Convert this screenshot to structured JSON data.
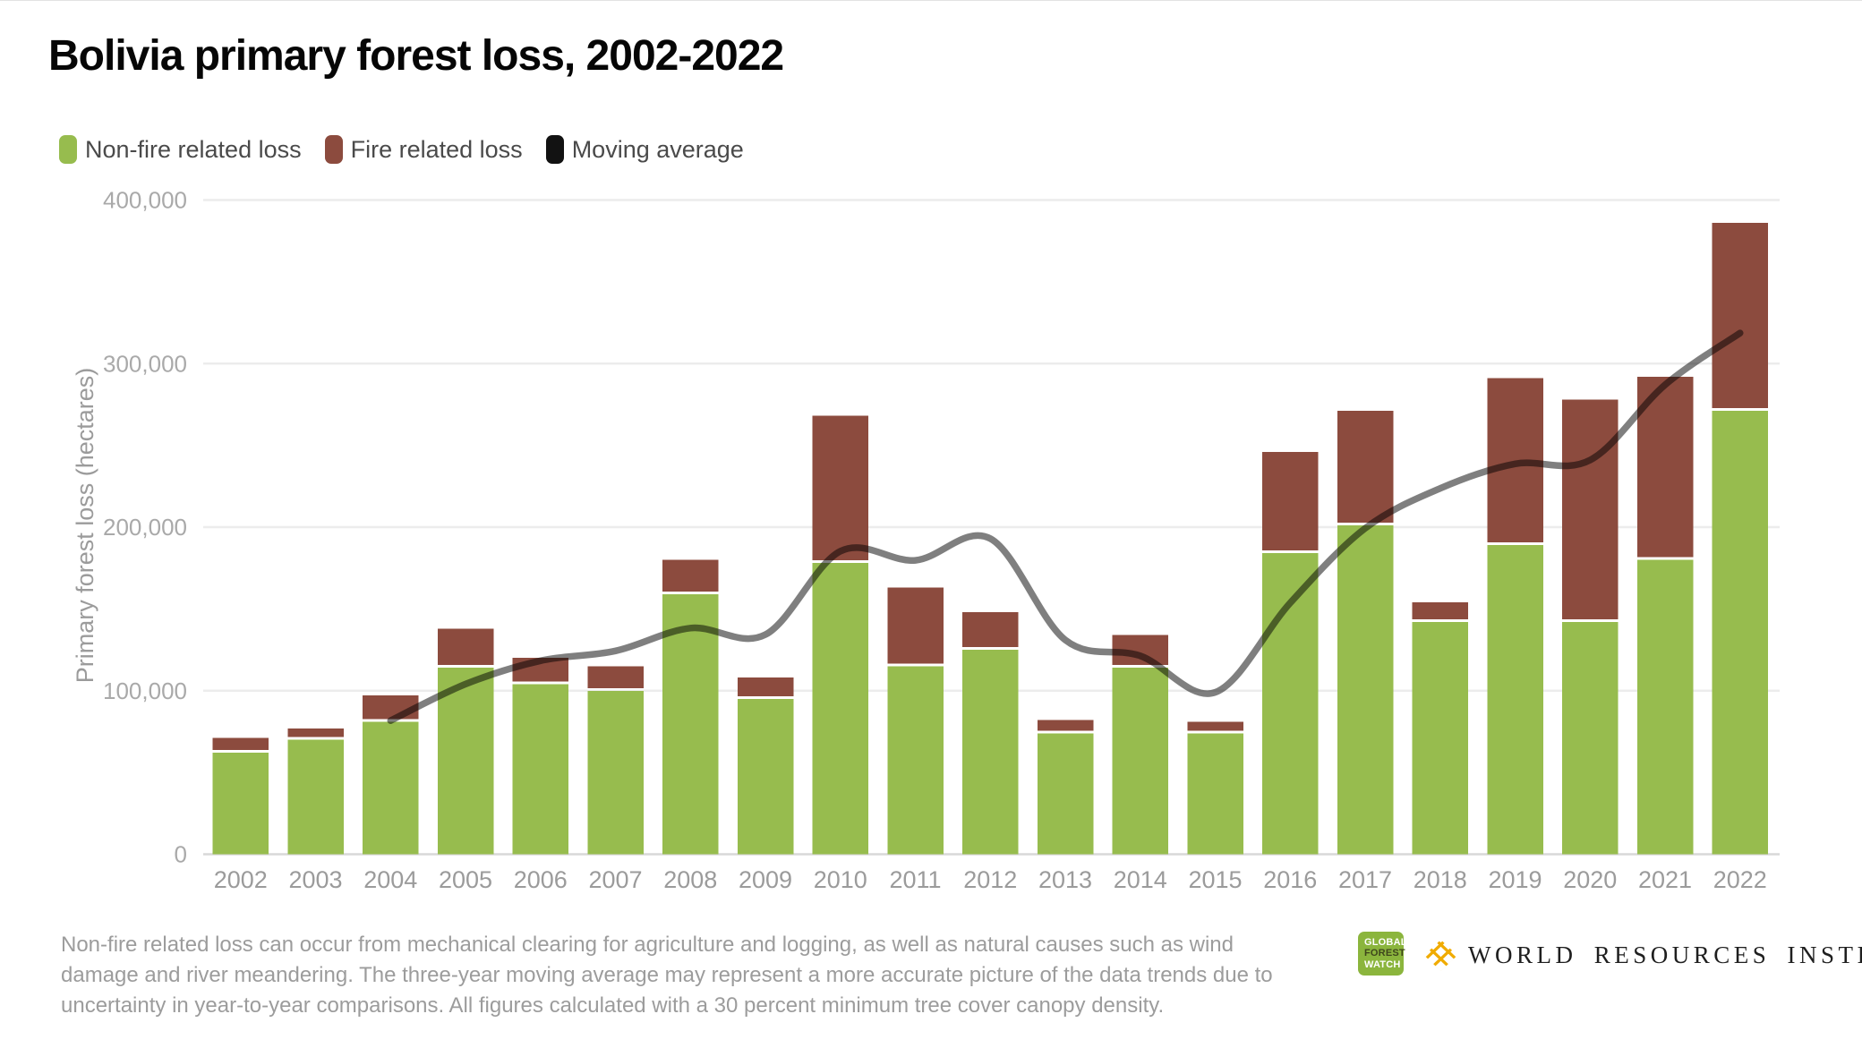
{
  "header": {
    "title": "Bolivia primary forest loss, 2002-2022"
  },
  "legend": [
    {
      "label": "Non-fire related loss",
      "color": "#97BC4E"
    },
    {
      "label": "Fire related loss",
      "color": "#8C4B3E"
    },
    {
      "label": "Moving average",
      "color": "#121212"
    }
  ],
  "chart_data": {
    "type": "bar",
    "stacked": true,
    "title": "Bolivia primary forest loss, 2002-2022",
    "xlabel": "",
    "ylabel": "Primary forest loss (hectares)",
    "categories": [
      "2002",
      "2003",
      "2004",
      "2005",
      "2006",
      "2007",
      "2008",
      "2009",
      "2010",
      "2011",
      "2012",
      "2013",
      "2014",
      "2015",
      "2016",
      "2017",
      "2018",
      "2019",
      "2020",
      "2021",
      "2022"
    ],
    "series": [
      {
        "name": "Non-fire related loss",
        "type": "bar",
        "color": "#97BC4E",
        "values": [
          62000,
          70000,
          81000,
          114000,
          104000,
          100000,
          159000,
          95000,
          178000,
          115000,
          125000,
          74000,
          114000,
          74000,
          184000,
          201000,
          142000,
          189000,
          142000,
          180000,
          271000
        ]
      },
      {
        "name": "Fire related loss",
        "type": "bar",
        "color": "#8C4B3E",
        "values": [
          9000,
          7000,
          16000,
          24000,
          16000,
          15000,
          21000,
          13000,
          90000,
          48000,
          23000,
          8000,
          20000,
          7000,
          62000,
          70000,
          12000,
          102000,
          136000,
          112000,
          115000
        ]
      },
      {
        "name": "Moving average",
        "type": "line",
        "color": "#000000",
        "opacity": 0.5,
        "note": "three-year trailing moving average of total loss, plotted 2004-2022",
        "x_start": "2004",
        "values": [
          81700,
          104000,
          118300,
          124300,
          138300,
          134300,
          185300,
          179700,
          193000,
          131000,
          121300,
          99000,
          153700,
          199300,
          223700,
          238700,
          241000,
          287000,
          318700
        ]
      }
    ],
    "totals": [
      71000,
      77000,
      97000,
      138000,
      120000,
      115000,
      180000,
      108000,
      268000,
      163000,
      148000,
      82000,
      134000,
      81000,
      246000,
      271000,
      154000,
      291000,
      278000,
      292000,
      386000
    ],
    "ylim": [
      0,
      400000
    ],
    "y_tick_values": [
      0,
      100000,
      200000,
      300000,
      400000
    ],
    "y_tick_labels": [
      "0",
      "100,000",
      "200,000",
      "300,000",
      "400,000"
    ],
    "grid": "horizontal",
    "legend_position": "top-left"
  },
  "footer": {
    "note": "Non-fire related loss can occur from mechanical clearing for agriculture and logging, as well as natural causes such as wind damage and river meandering. The three-year moving average may represent a more accurate picture of the data trends due to uncertainty in year-to-year comparisons. All figures calculated with a 30 percent minimum tree cover canopy density.",
    "gfw_logo": {
      "lines": [
        "GLOBAL",
        "FOREST",
        "WATCH"
      ],
      "color": "#8BB53D"
    },
    "wri_logo": {
      "text": "WORLD RESOURCES INSTITUTE",
      "icon_color": "#F0AB00"
    }
  },
  "colors": {
    "non_fire": "#97BC4E",
    "fire": "#8C4B3E",
    "moving_average_stroke": "#000000",
    "gridline": "#ececec",
    "baseline": "#d8d8d8",
    "tick_text": "#a9a9a9",
    "axis_title_text": "#9b9b9b",
    "gfw_green": "#8BB53D",
    "wri_orange": "#F0AB00"
  }
}
